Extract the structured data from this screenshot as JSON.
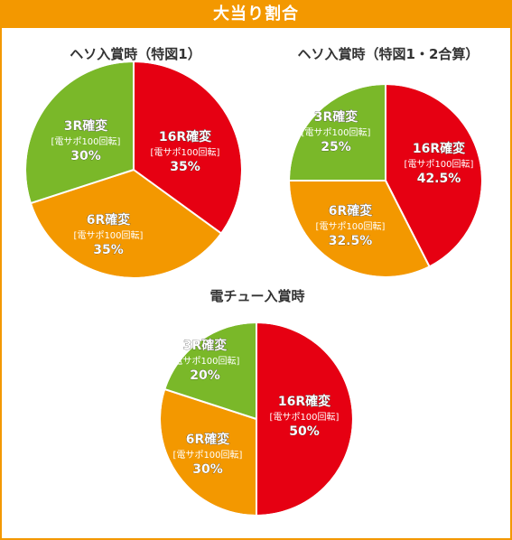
{
  "header": {
    "title": "大当り割合"
  },
  "colors": {
    "accent": "#f39800",
    "red": "#e60012",
    "orange": "#f39800",
    "green": "#7ab829"
  },
  "chart_data": [
    {
      "type": "pie",
      "title": "ヘソ入賞時（特図1）",
      "slices": [
        {
          "name": "16R確変",
          "sub": "[電サポ100回転]",
          "pct_label": "35%",
          "value": 35,
          "color": "#e60012"
        },
        {
          "name": "6R確変",
          "sub": "[電サポ100回転]",
          "pct_label": "35%",
          "value": 35,
          "color": "#f39800"
        },
        {
          "name": "3R確変",
          "sub": "[電サポ100回転]",
          "pct_label": "30%",
          "value": 30,
          "color": "#7ab829"
        }
      ]
    },
    {
      "type": "pie",
      "title": "ヘソ入賞時（特図1・2合算）",
      "slices": [
        {
          "name": "16R確変",
          "sub": "[電サポ100回転]",
          "pct_label": "42.5%",
          "value": 42.5,
          "color": "#e60012"
        },
        {
          "name": "6R確変",
          "sub": "[電サポ100回転]",
          "pct_label": "32.5%",
          "value": 32.5,
          "color": "#f39800"
        },
        {
          "name": "3R確変",
          "sub": "[電サポ100回転]",
          "pct_label": "25%",
          "value": 25,
          "color": "#7ab829"
        }
      ]
    },
    {
      "type": "pie",
      "title": "電チュー入賞時",
      "slices": [
        {
          "name": "16R確変",
          "sub": "[電サポ100回転]",
          "pct_label": "50%",
          "value": 50,
          "color": "#e60012"
        },
        {
          "name": "6R確変",
          "sub": "[電サポ100回転]",
          "pct_label": "30%",
          "value": 30,
          "color": "#f39800"
        },
        {
          "name": "3R確変",
          "sub": "[電サポ100回転]",
          "pct_label": "20%",
          "value": 20,
          "color": "#7ab829"
        }
      ]
    }
  ]
}
